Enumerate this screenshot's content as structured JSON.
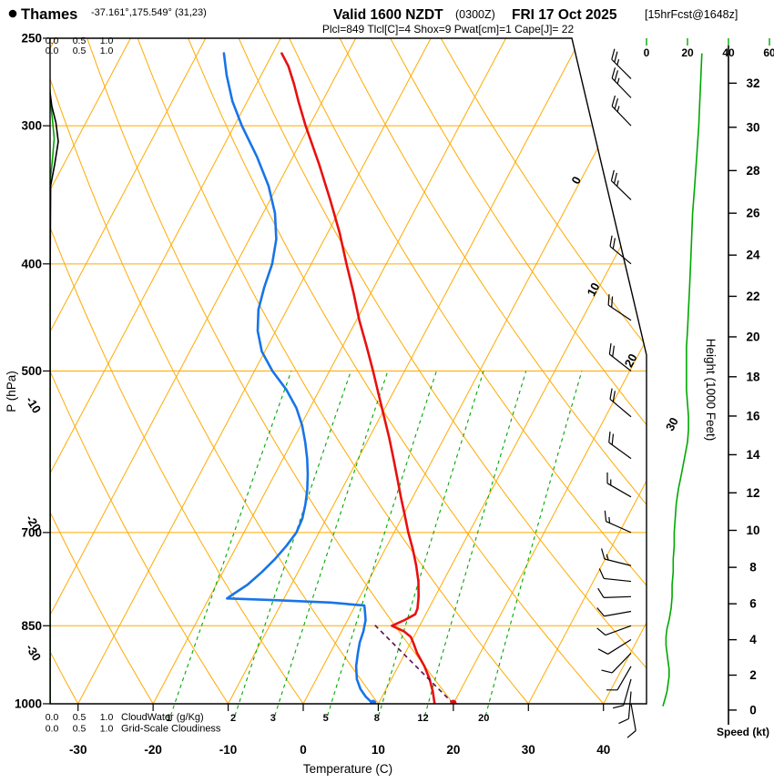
{
  "header": {
    "station": "Thames",
    "coords": "-37.161°,175.549° (31,23)",
    "valid": "Valid 1600 NZDT",
    "valid_zulu": "(0300Z)",
    "valid_date": "FRI 17 Oct 2025",
    "fcst_info": "[15hrFcst@1648z]",
    "indices": "Plcl=849 Tlcl[C]=4 Shox=9 Pwat[cm]=1 Cape[J]= 22"
  },
  "axes": {
    "pressure_label": "P (hPa)",
    "pressure_ticks": [
      250,
      300,
      400,
      500,
      700,
      850,
      1000
    ],
    "temp_label": "Temperature (C)",
    "temp_ticks": [
      -30,
      -20,
      -10,
      0,
      10,
      20,
      30,
      40
    ],
    "height_label": "Height (1000 Feet)",
    "height_ticks": [
      32,
      30,
      28,
      26,
      24,
      22,
      20,
      18,
      16,
      14,
      12,
      10,
      8,
      6,
      4,
      2,
      0
    ],
    "speed_label": "Speed (kt)",
    "speed_ticks": [
      0,
      20,
      40,
      60
    ],
    "cloud_scale_ticks": [
      "0.0",
      "0.5",
      "1.0"
    ],
    "cloudwater_label": "CloudWater (g/Kg)",
    "cloudiness_label": "Grid-Scale Cloudiness"
  },
  "colors": {
    "grid_orange": "#FFAA00",
    "isotherm_label_gold": "#D89C00",
    "mixing_green": "#00A800",
    "temperature_red": "#E81010",
    "dewpoint_blue": "#1874E8",
    "parcel_trace": "#5A1050",
    "wind_speed_green": "#00A800",
    "indices_magenta": "#C800C8",
    "axis_black": "#000000"
  },
  "chart_data": {
    "type": "line",
    "subtype": "skewt_logp_sounding",
    "pressure_range_hpa": [
      250,
      1000
    ],
    "temp_axis_ticks_c": [
      -30,
      -20,
      -10,
      0,
      10,
      20,
      30,
      40
    ],
    "isotherm_labels_c": [
      0,
      10,
      20,
      30
    ],
    "dry_adiabat_labels_c": [
      -10,
      -20,
      -30
    ],
    "mixing_ratio_lines_gkg": [
      1,
      2,
      3,
      5,
      8,
      12,
      20
    ],
    "temperature_profile_p_c": [
      [
        1000,
        17.5
      ],
      [
        975,
        16.4
      ],
      [
        950,
        15.1
      ],
      [
        925,
        13.5
      ],
      [
        900,
        11.6
      ],
      [
        880,
        10.3
      ],
      [
        870,
        9.6
      ],
      [
        860,
        8.3
      ],
      [
        850,
        6.3
      ],
      [
        840,
        7.6
      ],
      [
        830,
        8.6
      ],
      [
        820,
        8.5
      ],
      [
        800,
        7.8
      ],
      [
        775,
        6.7
      ],
      [
        750,
        5.3
      ],
      [
        725,
        3.7
      ],
      [
        700,
        1.9
      ],
      [
        675,
        0.2
      ],
      [
        650,
        -1.6
      ],
      [
        625,
        -3.4
      ],
      [
        600,
        -5.3
      ],
      [
        575,
        -7.3
      ],
      [
        550,
        -9.5
      ],
      [
        525,
        -11.8
      ],
      [
        500,
        -14.2
      ],
      [
        475,
        -16.8
      ],
      [
        450,
        -19.6
      ],
      [
        425,
        -22.3
      ],
      [
        400,
        -25.3
      ],
      [
        375,
        -28.4
      ],
      [
        350,
        -32.0
      ],
      [
        325,
        -36.0
      ],
      [
        300,
        -40.5
      ],
      [
        285,
        -43.2
      ],
      [
        275,
        -45.0
      ],
      [
        265,
        -47.0
      ],
      [
        258,
        -48.8
      ]
    ],
    "dewpoint_profile_p_c": [
      [
        1000,
        9.3
      ],
      [
        985,
        7.8
      ],
      [
        970,
        6.6
      ],
      [
        950,
        5.4
      ],
      [
        925,
        4.4
      ],
      [
        900,
        3.7
      ],
      [
        880,
        3.2
      ],
      [
        860,
        2.9
      ],
      [
        840,
        2.4
      ],
      [
        825,
        1.7
      ],
      [
        815,
        1.2
      ],
      [
        810,
        -3.5
      ],
      [
        806,
        -11.0
      ],
      [
        803,
        -17.6
      ],
      [
        795,
        -17.0
      ],
      [
        780,
        -15.8
      ],
      [
        760,
        -14.8
      ],
      [
        740,
        -14.0
      ],
      [
        720,
        -13.4
      ],
      [
        700,
        -13.0
      ],
      [
        680,
        -13.2
      ],
      [
        660,
        -13.8
      ],
      [
        640,
        -14.6
      ],
      [
        620,
        -15.6
      ],
      [
        600,
        -16.8
      ],
      [
        580,
        -18.2
      ],
      [
        560,
        -19.8
      ],
      [
        540,
        -21.8
      ],
      [
        520,
        -24.4
      ],
      [
        500,
        -27.6
      ],
      [
        480,
        -30.4
      ],
      [
        460,
        -32.4
      ],
      [
        440,
        -33.8
      ],
      [
        420,
        -34.6
      ],
      [
        400,
        -35.2
      ],
      [
        380,
        -36.4
      ],
      [
        360,
        -38.4
      ],
      [
        340,
        -41.2
      ],
      [
        320,
        -44.8
      ],
      [
        300,
        -49.0
      ],
      [
        285,
        -52.0
      ],
      [
        270,
        -54.6
      ],
      [
        258,
        -56.5
      ]
    ],
    "surface_parcel": {
      "pressure": 1000,
      "temp_c": 20,
      "dewpoint_c": 9.3
    },
    "lcl": {
      "pressure": 849,
      "temp_c": 4
    },
    "wind_speed_profile_p_kt": [
      [
        1005,
        8
      ],
      [
        990,
        9
      ],
      [
        975,
        10
      ],
      [
        960,
        10.5
      ],
      [
        945,
        11
      ],
      [
        930,
        11
      ],
      [
        915,
        10.5
      ],
      [
        900,
        10
      ],
      [
        885,
        9.5
      ],
      [
        870,
        9.5
      ],
      [
        855,
        10
      ],
      [
        840,
        11
      ],
      [
        820,
        12
      ],
      [
        800,
        12.5
      ],
      [
        780,
        12.5
      ],
      [
        760,
        13
      ],
      [
        740,
        13
      ],
      [
        720,
        13.5
      ],
      [
        700,
        13.5
      ],
      [
        680,
        14
      ],
      [
        660,
        14.5
      ],
      [
        640,
        15.5
      ],
      [
        620,
        17
      ],
      [
        600,
        18.5
      ],
      [
        580,
        20
      ],
      [
        565,
        20.5
      ],
      [
        550,
        20.5
      ],
      [
        535,
        20
      ],
      [
        520,
        19.5
      ],
      [
        505,
        19.5
      ],
      [
        490,
        19.5
      ],
      [
        475,
        19.5
      ],
      [
        460,
        20
      ],
      [
        440,
        20.5
      ],
      [
        420,
        21
      ],
      [
        400,
        21.5
      ],
      [
        380,
        22
      ],
      [
        360,
        22.5
      ],
      [
        340,
        23.5
      ],
      [
        320,
        24.5
      ],
      [
        300,
        25.5
      ],
      [
        285,
        26
      ],
      [
        272,
        26.5
      ],
      [
        258,
        27
      ]
    ],
    "wind_barbs_p_dir_kt": [
      [
        1000,
        170,
        8
      ],
      [
        975,
        185,
        10
      ],
      [
        950,
        196,
        10
      ],
      [
        925,
        210,
        10
      ],
      [
        900,
        224,
        10
      ],
      [
        875,
        238,
        10
      ],
      [
        850,
        250,
        10
      ],
      [
        825,
        260,
        11
      ],
      [
        800,
        268,
        12
      ],
      [
        775,
        276,
        12
      ],
      [
        750,
        284,
        13
      ],
      [
        700,
        294,
        14
      ],
      [
        650,
        300,
        15
      ],
      [
        600,
        306,
        18
      ],
      [
        550,
        310,
        20
      ],
      [
        500,
        308,
        20
      ],
      [
        450,
        304,
        20
      ],
      [
        400,
        310,
        21
      ],
      [
        350,
        314,
        23
      ],
      [
        300,
        316,
        25
      ],
      [
        283,
        316,
        26
      ],
      [
        272,
        315,
        27
      ]
    ],
    "cloud_water_profile_p_gkg": [
      [
        1000,
        0
      ],
      [
        420,
        0
      ],
      [
        335,
        0.005
      ],
      [
        322,
        0.04
      ],
      [
        308,
        0.07
      ],
      [
        296,
        0.04
      ],
      [
        286,
        0.01
      ],
      [
        278,
        0
      ]
    ],
    "cloudiness_profile_p_frac": [
      [
        1000,
        0
      ],
      [
        420,
        0
      ],
      [
        340,
        0.01
      ],
      [
        325,
        0.08
      ],
      [
        310,
        0.14
      ],
      [
        298,
        0.1
      ],
      [
        288,
        0.03
      ],
      [
        280,
        0
      ]
    ]
  }
}
